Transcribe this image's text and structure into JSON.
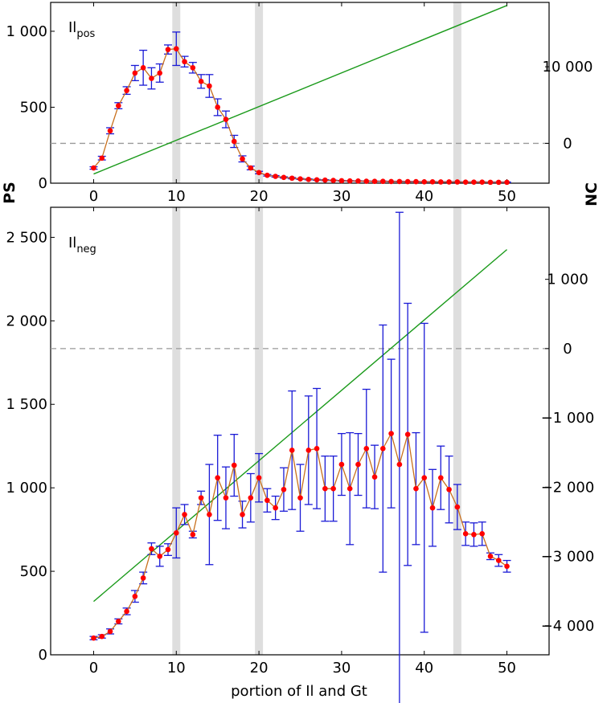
{
  "chart_data": {
    "type": "line",
    "xlabel": "portion of Il and Gt",
    "ylabel_left": "PS",
    "ylabel_right": "NC",
    "x_ticks": [
      0,
      10,
      20,
      30,
      40,
      50
    ],
    "highlight_x": [
      10,
      20,
      44
    ],
    "colors": {
      "points": "#ff0000",
      "connector": "#c8701e",
      "errorbars": "#1a1ad6",
      "trend": "#1a9a1a",
      "zero_line": "#999999",
      "band": "#dedede"
    },
    "panels": [
      {
        "label_main": "Il",
        "label_sub": "pos",
        "xlim": [
          -5.2,
          55.1
        ],
        "left": {
          "ylim": [
            0,
            1190
          ],
          "ticks": [
            0,
            500,
            1000
          ],
          "tick_labels": [
            "0",
            "500",
            "1 000"
          ]
        },
        "right": {
          "ylim": [
            -5200,
            18400
          ],
          "ticks": [
            0,
            10000
          ],
          "tick_labels": [
            "0",
            "10 000"
          ]
        },
        "trend": {
          "x": [
            0,
            50
          ],
          "y": [
            -4000,
            18000
          ]
        },
        "series": {
          "x": [
            0,
            1,
            2,
            3,
            4,
            5,
            6,
            7,
            8,
            9,
            10,
            11,
            12,
            13,
            14,
            15,
            16,
            17,
            18,
            19,
            20,
            21,
            22,
            23,
            24,
            25,
            26,
            27,
            28,
            29,
            30,
            31,
            32,
            33,
            34,
            35,
            36,
            37,
            38,
            39,
            40,
            41,
            42,
            43,
            44,
            45,
            46,
            47,
            48,
            49,
            50
          ],
          "y": [
            100,
            165,
            345,
            510,
            610,
            725,
            760,
            690,
            725,
            880,
            885,
            800,
            760,
            670,
            640,
            500,
            420,
            275,
            160,
            100,
            70,
            52,
            45,
            38,
            33,
            28,
            25,
            22,
            20,
            18,
            16,
            15,
            14,
            13,
            12,
            12,
            11,
            11,
            10,
            10,
            9,
            9,
            8,
            8,
            8,
            7,
            7,
            7,
            6,
            6,
            6
          ],
          "err": [
            8,
            12,
            20,
            20,
            25,
            50,
            115,
            70,
            60,
            30,
            110,
            35,
            35,
            45,
            75,
            55,
            55,
            40,
            20,
            12,
            8,
            5,
            5,
            4,
            4,
            3,
            3,
            3,
            3,
            2,
            2,
            2,
            2,
            2,
            2,
            2,
            2,
            2,
            2,
            2,
            2,
            2,
            2,
            2,
            2,
            2,
            2,
            2,
            2,
            2,
            2
          ]
        }
      },
      {
        "label_main": "Il",
        "label_sub": "neg",
        "xlim": [
          -5.2,
          55.1
        ],
        "left": {
          "ylim": [
            0,
            2680
          ],
          "ticks": [
            0,
            500,
            1000,
            1500,
            2000,
            2500
          ],
          "tick_labels": [
            "0",
            "500",
            "1 000",
            "1 500",
            "2 000",
            "2 500"
          ]
        },
        "right": {
          "ylim": [
            -4420,
            2040
          ],
          "ticks": [
            -4000,
            -3000,
            -2000,
            -1000,
            0,
            1000
          ],
          "tick_labels": [
            "−4 000",
            "−3 000",
            "−2 000",
            "−1 000",
            "0",
            "1 000"
          ]
        },
        "trend": {
          "x": [
            0,
            50
          ],
          "y": [
            -3650,
            1430
          ]
        },
        "series": {
          "x": [
            0,
            1,
            2,
            3,
            4,
            5,
            6,
            7,
            8,
            9,
            10,
            11,
            12,
            13,
            14,
            15,
            16,
            17,
            18,
            19,
            20,
            21,
            22,
            23,
            24,
            25,
            26,
            27,
            28,
            29,
            30,
            31,
            32,
            33,
            34,
            35,
            36,
            37,
            38,
            39,
            40,
            41,
            42,
            43,
            44,
            45,
            46,
            47,
            48,
            49,
            50
          ],
          "y": [
            100,
            110,
            140,
            200,
            260,
            350,
            460,
            635,
            590,
            630,
            730,
            840,
            720,
            940,
            840,
            1060,
            940,
            1135,
            840,
            940,
            1060,
            925,
            880,
            990,
            1225,
            940,
            1225,
            1235,
            995,
            995,
            1140,
            995,
            1140,
            1235,
            1065,
            1235,
            1325,
            1140,
            1320,
            995,
            1060,
            880,
            1060,
            990,
            885,
            725,
            720,
            725,
            590,
            565,
            530
          ],
          "err": [
            10,
            10,
            15,
            15,
            20,
            35,
            35,
            35,
            60,
            35,
            150,
            60,
            20,
            40,
            300,
            255,
            185,
            185,
            80,
            145,
            145,
            70,
            70,
            130,
            355,
            200,
            325,
            360,
            195,
            195,
            185,
            335,
            185,
            355,
            190,
            740,
            445,
            1510,
            785,
            335,
            925,
            230,
            190,
            200,
            135,
            70,
            70,
            70,
            20,
            35,
            35
          ]
        }
      }
    ]
  }
}
